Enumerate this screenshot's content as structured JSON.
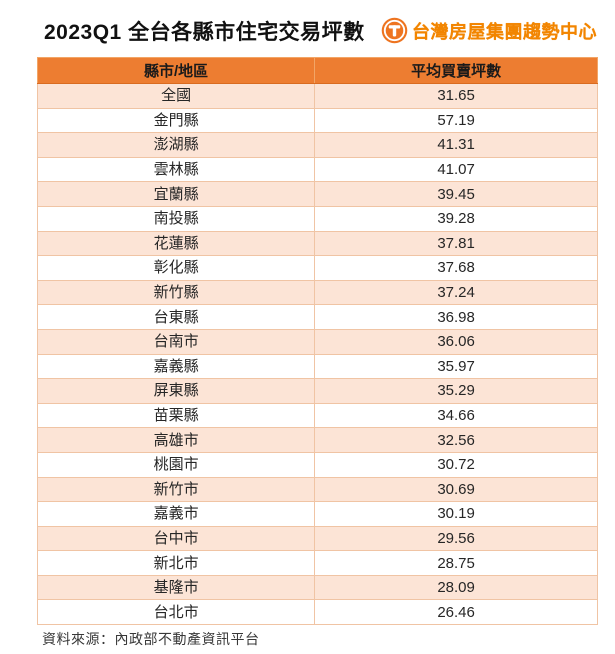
{
  "page": {
    "title": "2023Q1 全台各縣市住宅交易坪數",
    "source_note": "資料來源：內政部不動產資訊平台"
  },
  "logo": {
    "icon": "taiwan-housing-t-globe-icon",
    "icon_letter": "T",
    "text": "台灣房屋集團趨勢中心"
  },
  "colors": {
    "header_bg": "#ED7D31",
    "row_alt_bg": "#FCE4D6",
    "row_bg": "#FFFFFF",
    "table_border": "#F0C4A4",
    "logo_orange": "#F28500",
    "title_text": "#111111",
    "cell_text": "#262626"
  },
  "chart_data": {
    "type": "table",
    "title": "2023Q1 全台各縣市住宅交易坪數",
    "columns": [
      "縣市/地區",
      "平均買賣坪數"
    ],
    "rows": [
      [
        "全國",
        31.65
      ],
      [
        "金門縣",
        57.19
      ],
      [
        "澎湖縣",
        41.31
      ],
      [
        "雲林縣",
        41.07
      ],
      [
        "宜蘭縣",
        39.45
      ],
      [
        "南投縣",
        39.28
      ],
      [
        "花蓮縣",
        37.81
      ],
      [
        "彰化縣",
        37.68
      ],
      [
        "新竹縣",
        37.24
      ],
      [
        "台東縣",
        36.98
      ],
      [
        "台南市",
        36.06
      ],
      [
        "嘉義縣",
        35.97
      ],
      [
        "屏東縣",
        35.29
      ],
      [
        "苗栗縣",
        34.66
      ],
      [
        "高雄市",
        32.56
      ],
      [
        "桃園市",
        30.72
      ],
      [
        "新竹市",
        30.69
      ],
      [
        "嘉義市",
        30.19
      ],
      [
        "台中市",
        29.56
      ],
      [
        "新北市",
        28.75
      ],
      [
        "基隆市",
        28.09
      ],
      [
        "台北市",
        26.46
      ]
    ],
    "source": "資料來源：內政部不動產資訊平台",
    "layout": {
      "alternating_row_shading": true,
      "first_data_row_shaded": true,
      "legend": "none",
      "grid": "all-borders"
    }
  }
}
